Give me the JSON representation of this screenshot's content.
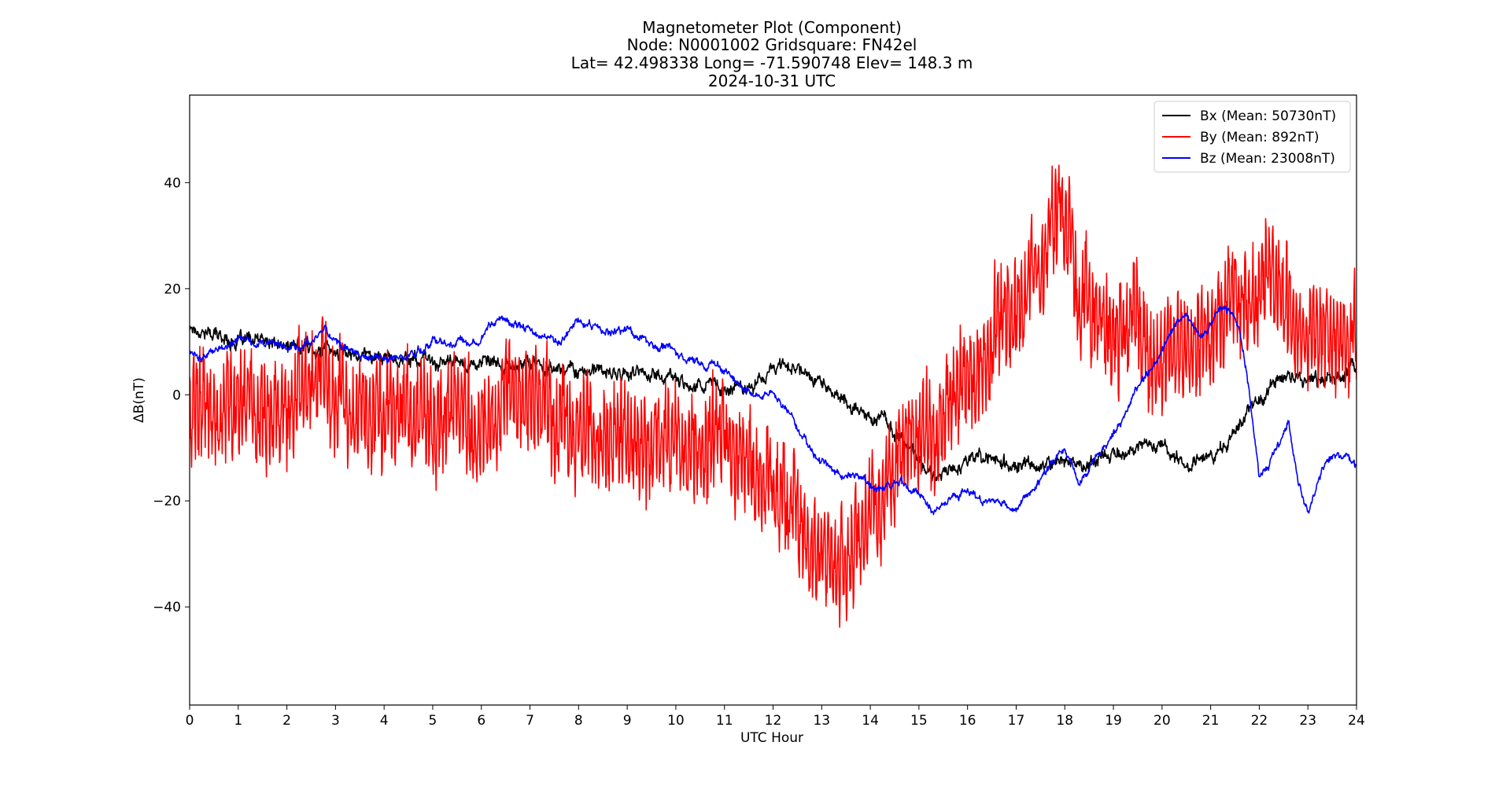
{
  "chart_data": {
    "type": "line",
    "title_lines": [
      "Magnetometer Plot (Component)",
      "Node:  N0001002     Gridsquare:  FN42el",
      "Lat= 42.498338    Long= -71.590748    Elev= 148.3 m",
      "2024-10-31  UTC"
    ],
    "xlabel": "UTC Hour",
    "ylabel": "ΔB(nT)",
    "xlim": [
      0,
      24
    ],
    "ylim": [
      -58.5,
      56.5
    ],
    "xticks": [
      0,
      1,
      2,
      3,
      4,
      5,
      6,
      7,
      8,
      9,
      10,
      11,
      12,
      13,
      14,
      15,
      16,
      17,
      18,
      19,
      20,
      21,
      22,
      23,
      24
    ],
    "yticks": [
      -40,
      -20,
      0,
      20,
      40
    ],
    "ytick_labels": [
      "−40",
      "−20",
      "0",
      "20",
      "40"
    ],
    "grid": false,
    "legend_position": "top-right",
    "series": [
      {
        "name": "Bx (Mean: 50730nT)",
        "color": "#000000",
        "noise": 1.6,
        "x": [
          0,
          0.3,
          0.6,
          1,
          1.5,
          2,
          2.5,
          3,
          3.5,
          4,
          4.5,
          5,
          5.5,
          6,
          6.5,
          7,
          7.5,
          8,
          8.5,
          9,
          9.5,
          10,
          10.5,
          11,
          11.5,
          11.9,
          12.2,
          12.5,
          12.8,
          13,
          13.3,
          13.6,
          14,
          14.3,
          14.6,
          14.9,
          15.1,
          15.3,
          15.6,
          15.9,
          16.2,
          16.5,
          16.8,
          17.1,
          17.4,
          17.7,
          18,
          18.3,
          18.6,
          19,
          19.4,
          19.8,
          20.2,
          20.5,
          20.8,
          21.1,
          21.4,
          21.7,
          22,
          22.3,
          22.6,
          22.9,
          23.2,
          23.6,
          24
        ],
        "y": [
          13,
          12,
          11,
          10,
          10,
          9,
          9,
          8,
          8,
          7,
          7,
          6,
          6,
          6,
          5,
          6,
          5,
          5,
          4,
          4,
          4,
          3,
          2,
          1,
          2,
          4,
          6,
          5,
          4,
          2,
          0,
          -2,
          -4,
          -5,
          -8,
          -11,
          -14,
          -15,
          -14,
          -12,
          -12,
          -12,
          -13,
          -14,
          -14,
          -13,
          -12,
          -13,
          -12,
          -11,
          -10,
          -9,
          -11,
          -13,
          -12,
          -11,
          -8,
          -4,
          0,
          2,
          3,
          4,
          3,
          3,
          6
        ]
      },
      {
        "name": "By (Mean: 892nT)",
        "color": "#ff0000",
        "noise": 8,
        "x": [
          0,
          0.5,
          1,
          1.5,
          2,
          2.5,
          2.8,
          3,
          3.5,
          4,
          4.5,
          5,
          5.5,
          6,
          6.5,
          7,
          7.5,
          8,
          8.5,
          9,
          9.5,
          10,
          10.5,
          11,
          11.5,
          12,
          12.5,
          13,
          13.3,
          13.6,
          14,
          14.3,
          14.6,
          15,
          15.3,
          15.6,
          16,
          16.3,
          16.6,
          17,
          17.3,
          17.6,
          17.9,
          18.1,
          18.3,
          18.6,
          19,
          19.4,
          19.8,
          20.2,
          20.6,
          21,
          21.4,
          21.8,
          22.1,
          22.5,
          23,
          23.5,
          24
        ],
        "y": [
          -4,
          -2,
          -4,
          -3,
          -2,
          2,
          6,
          0,
          -4,
          -4,
          -3,
          -6,
          -5,
          -6,
          -2,
          -4,
          -6,
          -7,
          -8,
          -7,
          -8,
          -7,
          -8,
          -8,
          -14,
          -18,
          -24,
          -28,
          -32,
          -30,
          -27,
          -20,
          -12,
          -10,
          -9,
          -2,
          5,
          8,
          10,
          18,
          20,
          24,
          34,
          30,
          18,
          15,
          14,
          12,
          8,
          6,
          10,
          13,
          15,
          18,
          22,
          18,
          10,
          10,
          14
        ]
      },
      {
        "name": "Bz (Mean: 23008nT)",
        "color": "#0000ff",
        "noise": 0.9,
        "x": [
          0,
          0.3,
          0.7,
          1,
          1.5,
          2,
          2.5,
          2.8,
          3,
          3.5,
          4,
          4.5,
          5,
          5.5,
          6,
          6.4,
          6.8,
          7.2,
          7.6,
          8,
          8.5,
          9,
          9.5,
          10,
          10.5,
          11,
          11.3,
          11.6,
          12,
          12.3,
          12.6,
          12.9,
          13.2,
          13.5,
          13.8,
          14.2,
          14.6,
          15,
          15.3,
          15.6,
          16,
          16.3,
          16.6,
          17,
          17.3,
          17.6,
          18,
          18.3,
          18.6,
          19,
          19.3,
          19.6,
          20,
          20.2,
          20.5,
          20.8,
          21,
          21.2,
          21.4,
          21.6,
          21.8,
          22,
          22.2,
          22.4,
          22.6,
          22.8,
          23,
          23.3,
          23.6,
          24
        ],
        "y": [
          8,
          7,
          9,
          10,
          10,
          9,
          10,
          13,
          10,
          7,
          7,
          7,
          10,
          10,
          11,
          15,
          13,
          11,
          10,
          14,
          12,
          12,
          10,
          8,
          6,
          5,
          2,
          0,
          0,
          -3,
          -8,
          -12,
          -14,
          -15,
          -16,
          -18,
          -16,
          -19,
          -22,
          -20,
          -18,
          -20,
          -20,
          -22,
          -18,
          -15,
          -10,
          -17,
          -12,
          -8,
          -2,
          3,
          8,
          12,
          16,
          11,
          13,
          17,
          16,
          12,
          0,
          -15,
          -13,
          -10,
          -5,
          -16,
          -22,
          -14,
          -11,
          -13
        ]
      }
    ]
  }
}
